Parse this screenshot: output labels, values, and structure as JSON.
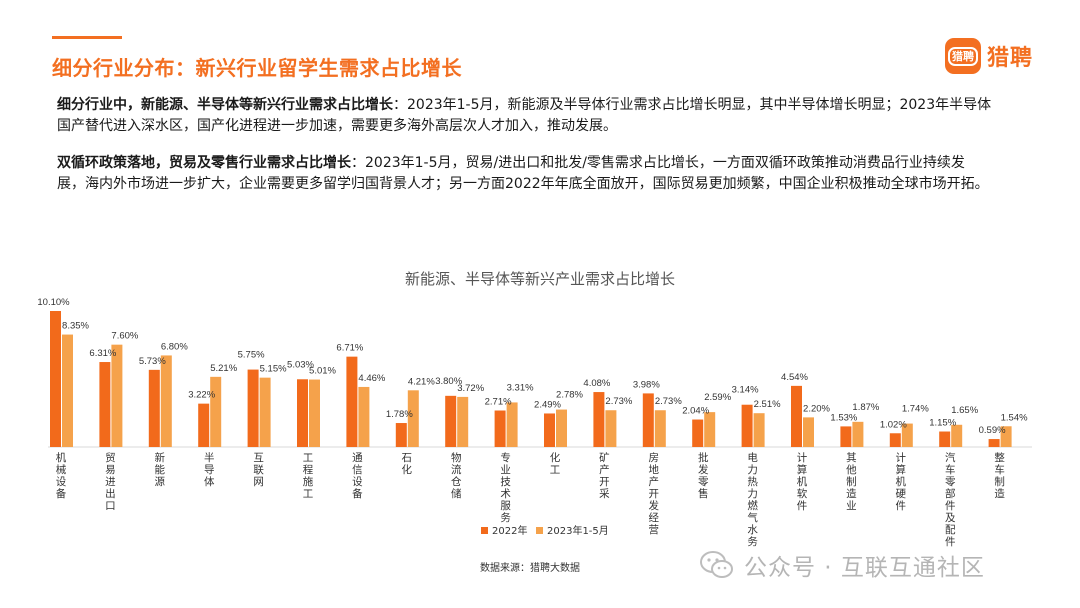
{
  "header": {
    "title": "细分行业分布：新兴行业留学生需求占比增长",
    "logo_badge": "猎聘",
    "logo_text": "猎聘"
  },
  "paragraphs": [
    {
      "bold": "细分行业中，新能源、半导体等新兴行业需求占比增长",
      "text": "：2023年1-5月，新能源及半导体行业需求占比增长明显，其中半导体增长明显；2023年半导体国产替代进入深水区，国产化进程进一步加速，需要更多海外高层次人才加入，推动发展。"
    },
    {
      "bold": "双循环政策落地，贸易及零售行业需求占比增长",
      "text": "：2023年1-5月，贸易/进出口和批发/零售需求占比增长，一方面双循环政策推动消费品行业持续发展，海内外市场进一步扩大，企业需要更多留学归国背景人才；另一方面2022年年底全面放开，国际贸易更加频繁，中国企业积极推动全球市场开拓。"
    }
  ],
  "chart_data": {
    "type": "bar",
    "title": "新能源、半导体等新兴产业需求占比增长",
    "categories": [
      "机械设备",
      "贸易进出口",
      "新能源",
      "半导体",
      "互联网",
      "工程施工",
      "通信设备",
      "石化",
      "物流仓储",
      "专业技术服务",
      "化工",
      "矿产开采",
      "房地产开发经营",
      "批发零售",
      "电力热力燃气水务",
      "计算机软件",
      "其他制造业",
      "计算机硬件",
      "汽车零部件及配件",
      "整车制造"
    ],
    "series": [
      {
        "name": "2022年",
        "color": "#f26a1b",
        "values": [
          10.1,
          6.31,
          5.73,
          3.22,
          5.75,
          5.03,
          6.71,
          1.78,
          3.8,
          2.71,
          2.49,
          4.08,
          3.98,
          2.04,
          3.14,
          4.54,
          1.53,
          1.02,
          1.15,
          0.59
        ],
        "labels": [
          "10.10%",
          "6.31%",
          "5.73%",
          "3.22%",
          "5.75%",
          "5.03%",
          "6.71%",
          "1.78%",
          "3.80%",
          "2.71%",
          "2.49%",
          "4.08%",
          "3.98%",
          "2.04%",
          "3.14%",
          "4.54%",
          "1.53%",
          "1.02%",
          "1.15%",
          "0.59%"
        ]
      },
      {
        "name": "2023年1-5月",
        "color": "#f5a24b",
        "values": [
          8.35,
          7.6,
          6.8,
          5.21,
          5.15,
          5.01,
          4.46,
          4.21,
          3.72,
          3.31,
          2.78,
          2.73,
          2.73,
          2.59,
          2.51,
          2.2,
          1.87,
          1.74,
          1.65,
          1.54
        ],
        "labels": [
          "8.35%",
          "7.60%",
          "6.80%",
          "5.21%",
          "5.15%",
          "5.01%",
          "4.46%",
          "4.21%",
          "3.72%",
          "3.31%",
          "2.78%",
          "2.73%",
          "2.73%",
          "2.59%",
          "2.51%",
          "2.20%",
          "1.87%",
          "1.74%",
          "1.65%",
          "1.54%"
        ]
      }
    ],
    "ylim": [
      0,
      11
    ],
    "legend_position": "bottom",
    "source": "数据来源：猎聘大数据"
  },
  "watermark": "公众号 · 互联互通社区"
}
